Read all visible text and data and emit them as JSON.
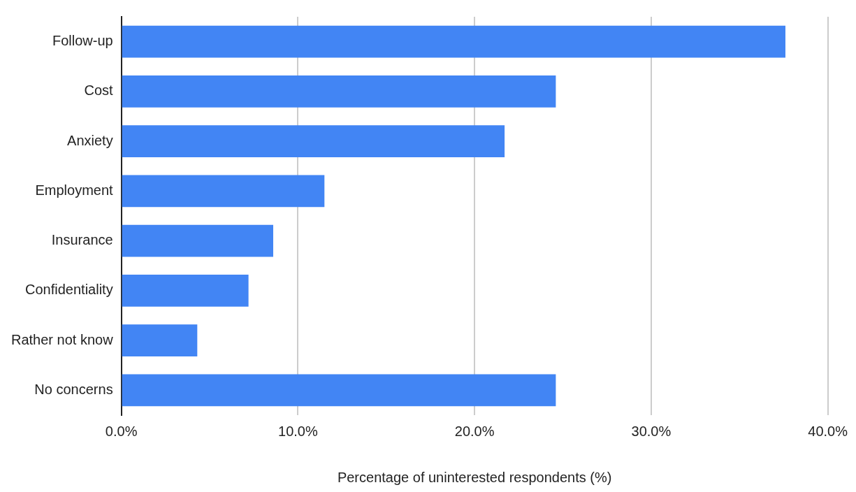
{
  "chart_data": {
    "type": "bar",
    "orientation": "horizontal",
    "xlabel": "Percentage of uninterested respondents (%)",
    "categories": [
      "Follow-up",
      "Cost",
      "Anxiety",
      "Employment",
      "Insurance",
      "Confidentiality",
      "Rather not know",
      "No concerns"
    ],
    "values": [
      37.6,
      24.6,
      21.7,
      11.5,
      8.6,
      7.2,
      4.3,
      24.6
    ],
    "color": "#4285f4",
    "xlim": [
      0,
      40
    ],
    "xticks": [
      {
        "value": 0,
        "label": "0.0%"
      },
      {
        "value": 10,
        "label": "10.0%"
      },
      {
        "value": 20,
        "label": "20.0%"
      },
      {
        "value": 30,
        "label": "30.0%"
      },
      {
        "value": 40,
        "label": "40.0%"
      }
    ],
    "grid": "x",
    "legend": false
  }
}
